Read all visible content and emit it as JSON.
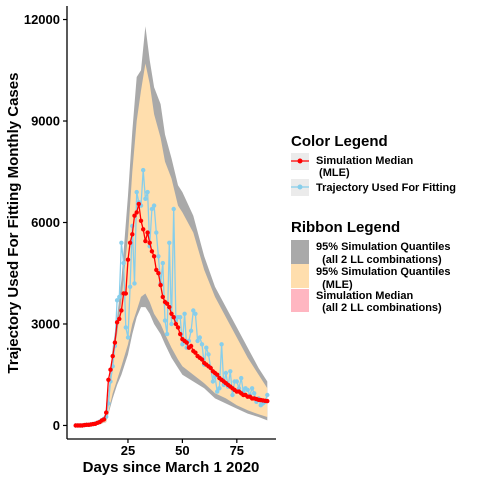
{
  "chart_data": {
    "type": "line",
    "xlabel": "Days since March 1 2020",
    "ylabel": "Trajectory Used For Fitting Monthly Cases",
    "xlim": [
      -3,
      93
    ],
    "ylim": [
      -400,
      12400
    ],
    "x_ticks": [
      25,
      50,
      75
    ],
    "y_ticks": [
      0,
      3000,
      6000,
      9000,
      12000
    ],
    "x_tick_labels": [
      "25",
      "50",
      "75"
    ],
    "y_tick_labels": [
      "0",
      "3000",
      "6000",
      "9000",
      "12000"
    ],
    "grid": false,
    "legend_position": "right",
    "color_legend": {
      "title": "Color  Legend",
      "items": [
        {
          "label_lines": [
            "Simulation Median",
            " (MLE)"
          ],
          "color": "#ff0000"
        },
        {
          "label_lines": [
            "Trajectory Used For Fitting"
          ],
          "color": "#87ceeb"
        }
      ]
    },
    "ribbon_legend": {
      "title": "Ribbon  Legend",
      "items": [
        {
          "label_lines": [
            "95% Simulation Quantiles",
            "  (all 2 LL combinations)"
          ],
          "color": "#a9a9a9"
        },
        {
          "label_lines": [
            "95% Simulation Quantiles",
            "  (MLE)"
          ],
          "color": "#ffdead"
        },
        {
          "label_lines": [
            "Simulation Median",
            "  (all 2 LL combinations)"
          ],
          "color": "#ffb6c1"
        }
      ]
    },
    "series": [
      {
        "name": "Trajectory Used For Fitting",
        "color": "#87ceeb",
        "x": [
          1,
          2,
          3,
          4,
          5,
          6,
          7,
          8,
          9,
          10,
          11,
          12,
          13,
          14,
          15,
          16,
          17,
          18,
          19,
          20,
          21,
          22,
          23,
          24,
          25,
          26,
          27,
          28,
          29,
          30,
          31,
          32,
          33,
          34,
          35,
          36,
          37,
          38,
          39,
          40,
          41,
          42,
          43,
          44,
          45,
          46,
          47,
          48,
          49,
          50,
          51,
          52,
          53,
          54,
          55,
          56,
          57,
          58,
          59,
          60,
          61,
          62,
          63,
          64,
          65,
          66,
          67,
          68,
          69,
          70,
          71,
          72,
          73,
          74,
          75,
          76,
          77,
          78,
          79,
          80,
          81,
          82,
          83,
          84,
          85,
          86,
          87,
          88,
          89
        ],
        "y": [
          0,
          0,
          0,
          0,
          10,
          20,
          20,
          30,
          40,
          60,
          80,
          110,
          150,
          200,
          260,
          650,
          1300,
          1750,
          2350,
          3700,
          3800,
          5400,
          4800,
          2900,
          2600,
          4100,
          5900,
          4200,
          6900,
          6600,
          6500,
          7550,
          6700,
          6900,
          5300,
          6400,
          6500,
          5700,
          5000,
          4200,
          4800,
          3100,
          2700,
          5400,
          3000,
          6400,
          3100,
          3200,
          3200,
          2400,
          3300,
          2300,
          2500,
          2800,
          3400,
          3300,
          2500,
          2600,
          2400,
          1800,
          2300,
          2100,
          1700,
          1300,
          1450,
          1000,
          1100,
          2400,
          1200,
          1550,
          1150,
          1600,
          900,
          1300,
          1300,
          1100,
          1400,
          1000,
          1100,
          1050,
          900,
          1100,
          950,
          700,
          800,
          600,
          650,
          700,
          900
        ]
      },
      {
        "name": "Simulation Median\n (MLE)",
        "color": "#ff0000",
        "x": [
          1,
          2,
          3,
          4,
          5,
          6,
          7,
          8,
          9,
          10,
          11,
          12,
          13,
          14,
          15,
          16,
          17,
          18,
          19,
          20,
          21,
          22,
          23,
          24,
          25,
          26,
          27,
          28,
          29,
          30,
          31,
          32,
          33,
          34,
          35,
          36,
          37,
          38,
          39,
          40,
          41,
          42,
          43,
          44,
          45,
          46,
          47,
          48,
          49,
          50,
          51,
          52,
          53,
          54,
          55,
          56,
          57,
          58,
          59,
          60,
          61,
          62,
          63,
          64,
          65,
          66,
          67,
          68,
          69,
          70,
          71,
          72,
          73,
          74,
          75,
          76,
          77,
          78,
          79,
          80,
          81,
          82,
          83,
          84,
          85,
          86,
          87,
          88,
          89
        ],
        "y": [
          0,
          0,
          0,
          0,
          10,
          20,
          20,
          30,
          40,
          50,
          80,
          100,
          150,
          180,
          380,
          1350,
          1650,
          2050,
          2450,
          3050,
          3150,
          3400,
          3900,
          3900,
          4900,
          5400,
          5650,
          6200,
          6300,
          6550,
          6050,
          5800,
          5450,
          5700,
          5400,
          5150,
          5000,
          4600,
          4500,
          4150,
          3800,
          3650,
          3600,
          3500,
          3300,
          3200,
          3000,
          2900,
          2700,
          2550,
          2500,
          2450,
          2300,
          2350,
          2200,
          2150,
          2050,
          2000,
          1950,
          1850,
          1800,
          1750,
          1700,
          1600,
          1550,
          1500,
          1400,
          1350,
          1300,
          1250,
          1200,
          1150,
          1100,
          1050,
          1000,
          1000,
          950,
          900,
          900,
          850,
          850,
          800,
          800,
          780,
          760,
          750,
          740,
          730,
          720
        ]
      }
    ],
    "ribbons": [
      {
        "name": "95% Simulation Quantiles\n  (all 2 LL combinations)",
        "color": "#a9a9a9",
        "x": [
          1,
          5,
          10,
          15,
          18,
          20,
          22,
          25,
          27,
          29,
          31,
          33,
          35,
          37,
          40,
          42,
          45,
          48,
          50,
          55,
          60,
          65,
          70,
          75,
          80,
          85,
          89
        ],
        "upper": [
          20,
          40,
          90,
          300,
          2300,
          3200,
          4300,
          6800,
          8700,
          10300,
          10500,
          11800,
          10800,
          10000,
          9500,
          8600,
          7900,
          7100,
          6900,
          6200,
          5000,
          4100,
          3500,
          2900,
          2300,
          1700,
          1300
        ],
        "lower": [
          0,
          0,
          0,
          100,
          800,
          1200,
          1500,
          2100,
          2700,
          3200,
          3500,
          3500,
          3300,
          3000,
          2700,
          2400,
          2000,
          1700,
          1500,
          1300,
          1100,
          800,
          650,
          500,
          350,
          250,
          150
        ]
      },
      {
        "name": "95% Simulation Quantiles\n  (MLE)",
        "color": "#ffdead",
        "x": [
          1,
          5,
          10,
          15,
          18,
          20,
          22,
          25,
          27,
          29,
          31,
          33,
          35,
          37,
          40,
          42,
          45,
          48,
          50,
          55,
          60,
          65,
          70,
          75,
          80,
          85,
          89
        ],
        "upper": [
          20,
          40,
          90,
          280,
          2000,
          2700,
          3700,
          5600,
          7500,
          9000,
          9900,
          10700,
          10100,
          9200,
          8500,
          7800,
          7300,
          6500,
          6300,
          5700,
          4600,
          3800,
          3200,
          2600,
          2000,
          1500,
          1100
        ],
        "lower": [
          0,
          0,
          0,
          110,
          950,
          1350,
          1750,
          2400,
          3000,
          3400,
          3800,
          3900,
          3650,
          3300,
          3000,
          2700,
          2300,
          1950,
          1750,
          1500,
          1250,
          950,
          800,
          600,
          450,
          330,
          250
        ]
      }
    ]
  }
}
